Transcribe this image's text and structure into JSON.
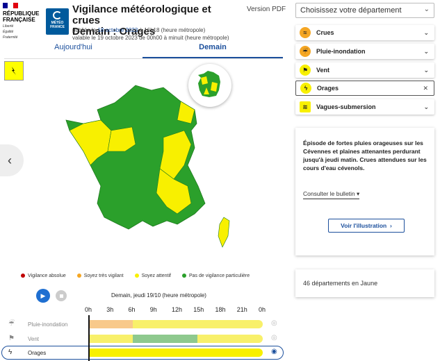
{
  "header": {
    "rf_lines": [
      "RÉPUBLIQUE",
      "FRANÇAISE"
    ],
    "rf_motto": [
      "Liberté",
      "Égalité",
      "Fraternité"
    ],
    "mf_logo_text": [
      "MÉTÉO",
      "FRANCE"
    ],
    "title": "Vigilance météorologique et crues",
    "subtitle": "Demain : Orages",
    "published_prefix": "publiée le ",
    "published_date": "18 octobre 2023",
    "published_suffix": " à 16h18 (heure métropole)",
    "valid_text": "valable le 19 octobre 2023 de 00h00 à minuit (heure métropole)",
    "pdf_label": "Version PDF"
  },
  "tabs": {
    "today": "Aujourd'hui",
    "tomorrow": "Demain"
  },
  "legend": [
    {
      "label": "Vigilance absolue",
      "color": "#c00000"
    },
    {
      "label": "Soyez très vigilant",
      "color": "#f5a623"
    },
    {
      "label": "Soyez attentif",
      "color": "#f8f000"
    },
    {
      "label": "Pas de vigilance particulière",
      "color": "#2ba02b"
    }
  ],
  "timeline": {
    "date": "Demain, jeudi 19/10 (heure métropole)",
    "hours": [
      "0h",
      "3h",
      "6h",
      "9h",
      "12h",
      "15h",
      "18h",
      "21h",
      "0h"
    ],
    "rows": [
      {
        "label": "Pluie-inondation",
        "segments": [
          {
            "to_h": 6,
            "color": "#f8c98a"
          },
          {
            "to_h": 24,
            "color": "#f8f06a"
          }
        ]
      },
      {
        "label": "Vent",
        "segments": [
          {
            "to_h": 6,
            "color": "#f8f06a"
          },
          {
            "to_h": 15,
            "color": "#8ec98e"
          },
          {
            "to_h": 24,
            "color": "#f8f06a"
          }
        ]
      },
      {
        "label": "Orages",
        "segments": [
          {
            "to_h": 24,
            "color": "#f8f000"
          }
        ]
      }
    ]
  },
  "panel": {
    "select_label": "Choisissez votre département",
    "phenomena": [
      {
        "label": "Crues",
        "icon": "waves-icon",
        "color": "#f5a623"
      },
      {
        "label": "Pluie-inondation",
        "icon": "rain-flood-icon",
        "color": "#f5a623"
      },
      {
        "label": "Vent",
        "icon": "wind-icon",
        "color": "#f8f000"
      },
      {
        "label": "Orages",
        "icon": "lightning-icon",
        "color": "#f8f000"
      },
      {
        "label": "Vagues-submersion",
        "icon": "wave-surge-icon",
        "color": "#f8f000"
      }
    ],
    "info_text": "Épisode de fortes pluies orageuses sur les Cévennes et plaines attenantes perdurant jusqu'à jeudi matin. Crues attendues sur les cours d'eau cévenols.",
    "bulletin_label": "Consulter le bulletin",
    "illustration_label": "Voir l'illustration",
    "count_text": "46 départements en Jaune"
  }
}
